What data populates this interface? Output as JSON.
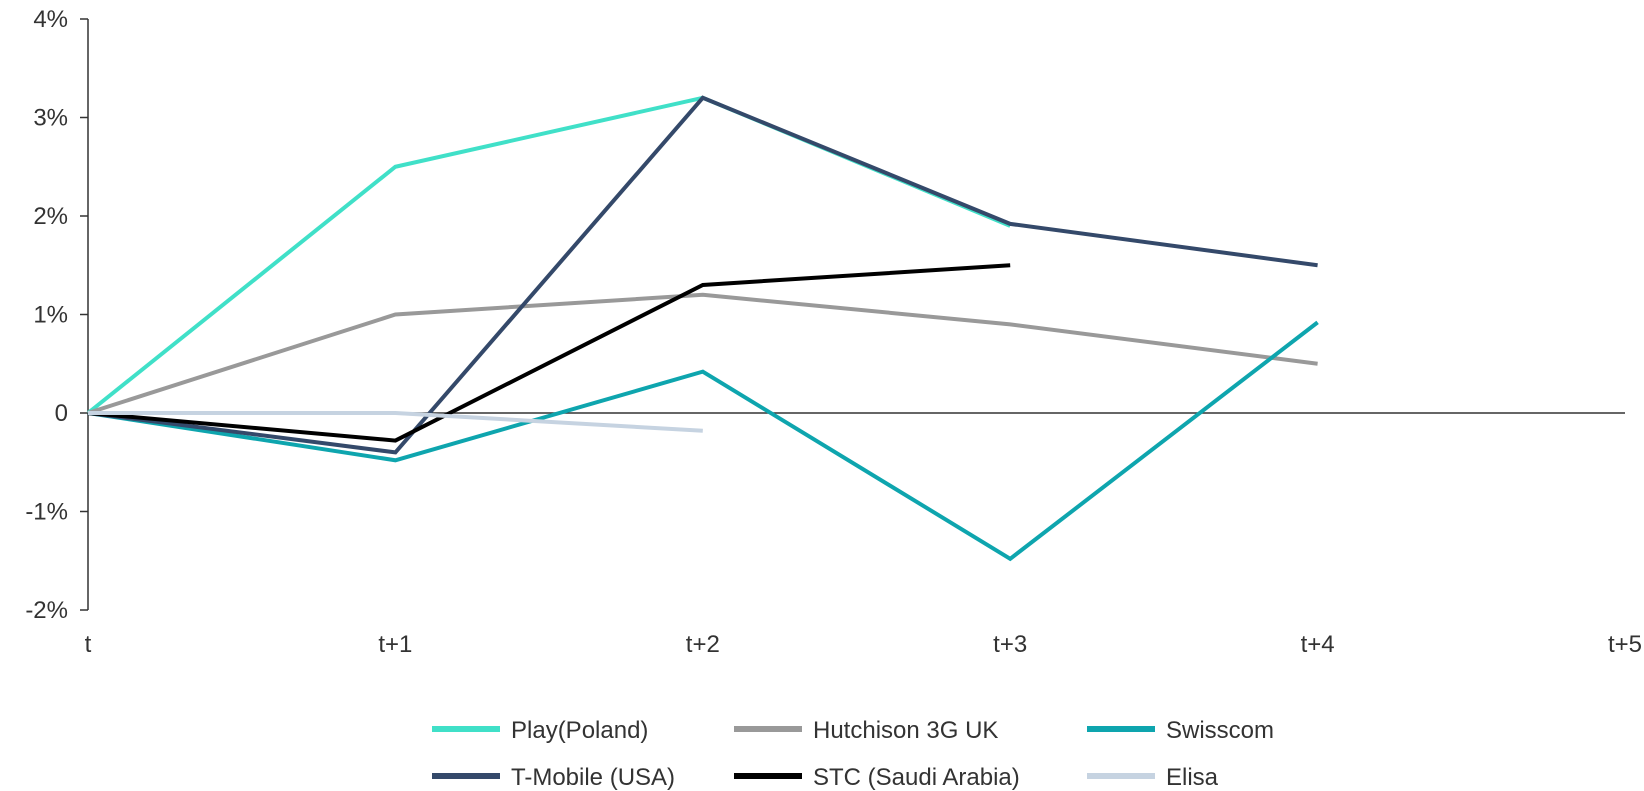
{
  "chart_data": {
    "type": "line",
    "x": [
      "t",
      "t+1",
      "t+2",
      "t+3",
      "t+4",
      "t+5"
    ],
    "y_ticks": [
      {
        "value": 4,
        "label": "4%"
      },
      {
        "value": 3,
        "label": "3%"
      },
      {
        "value": 2,
        "label": "2%"
      },
      {
        "value": 1,
        "label": "1%"
      },
      {
        "value": 0,
        "label": "0"
      },
      {
        "value": -1,
        "label": "-1%"
      },
      {
        "value": -2,
        "label": "-2%"
      }
    ],
    "ylim": [
      -2,
      4
    ],
    "grid": false,
    "legend_position": "bottom",
    "series": [
      {
        "name": "Play(Poland)",
        "color": "#40E0C8",
        "values": [
          0,
          2.5,
          3.2,
          1.9,
          null,
          null
        ]
      },
      {
        "name": "Hutchison 3G UK",
        "color": "#999999",
        "values": [
          0,
          1.0,
          1.2,
          0.9,
          0.5,
          null
        ]
      },
      {
        "name": "Swisscom",
        "color": "#0EA5AE",
        "values": [
          0,
          -0.48,
          0.42,
          -1.48,
          0.92,
          null
        ]
      },
      {
        "name": "T-Mobile (USA)",
        "color": "#34496A",
        "values": [
          0,
          -0.4,
          3.2,
          1.92,
          1.5,
          null
        ]
      },
      {
        "name": "STC (Saudi Arabia)",
        "color": "#000000",
        "values": [
          0,
          -0.28,
          1.3,
          1.5,
          null,
          null
        ]
      },
      {
        "name": "Elisa",
        "color": "#C6D3E1",
        "values": [
          0,
          0,
          -0.18,
          null,
          null,
          null
        ]
      }
    ]
  }
}
